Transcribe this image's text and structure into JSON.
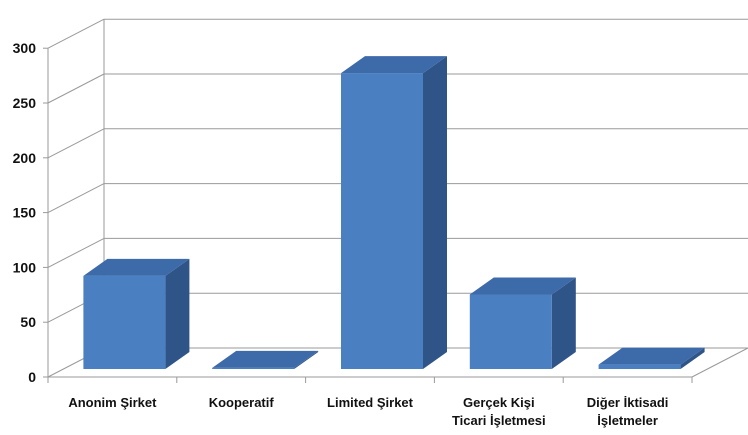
{
  "chart_data": {
    "type": "bar",
    "style": "3d-column",
    "categories": [
      [
        "Anonim Şirket"
      ],
      [
        "Kooperatif"
      ],
      [
        "Limited Şirket"
      ],
      [
        "Gerçek Kişi",
        "Ticari İşletmesi"
      ],
      [
        "Diğer İktisadi",
        "İşletmeler"
      ]
    ],
    "values": [
      85,
      1,
      270,
      68,
      4
    ],
    "ylim": [
      0,
      300
    ],
    "yticks": [
      0,
      50,
      100,
      150,
      200,
      250,
      300
    ],
    "grid": true,
    "legend": "none",
    "colors": {
      "bar_front": "#4a7fc1",
      "bar_side": "#2f5488",
      "bar_top": "#3d6aa8",
      "grid": "#9a9a9a",
      "text": "#111111"
    }
  }
}
